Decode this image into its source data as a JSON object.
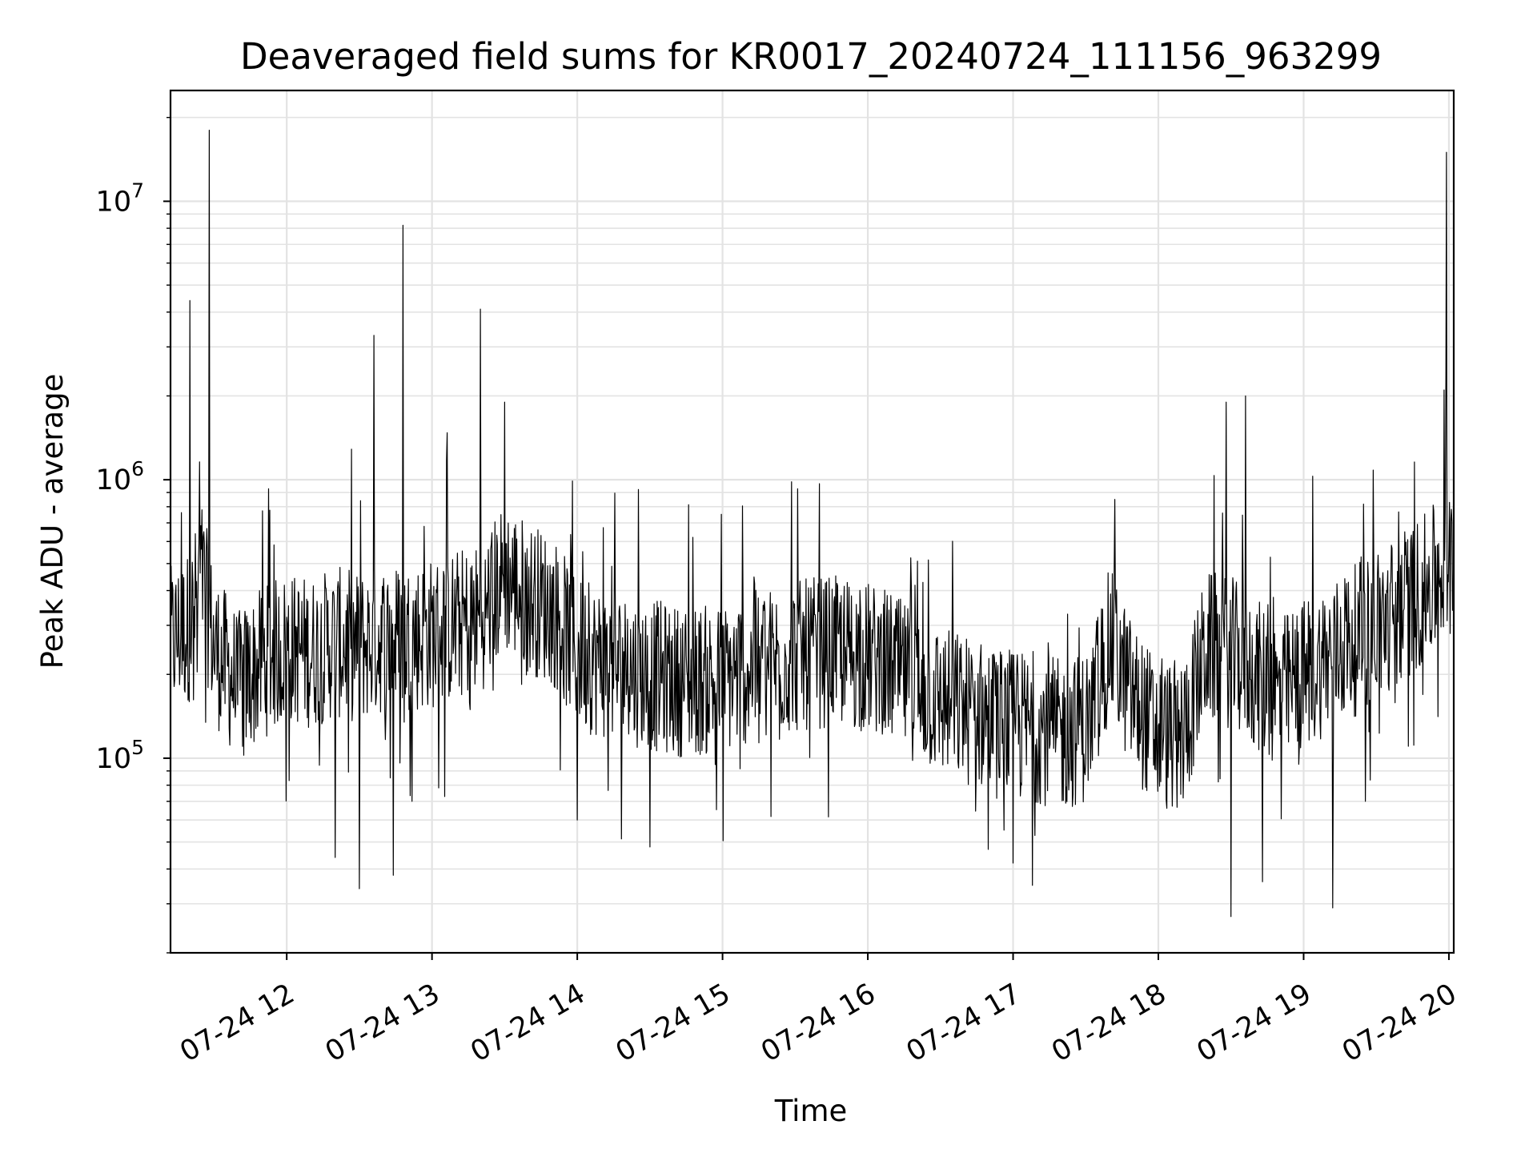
{
  "chart_data": {
    "type": "line",
    "title": "Deaveraged field sums for KR0017_20240724_111156_963299",
    "xlabel": "Time",
    "ylabel": "Peak ADU - average",
    "yscale": "log",
    "ylim": [
      20000,
      25000000
    ],
    "xlim": [
      "07-24 11:12",
      "07-24 20:02"
    ],
    "x_ticks": [
      "07-24 12",
      "07-24 13",
      "07-24 14",
      "07-24 15",
      "07-24 16",
      "07-24 17",
      "07-24 18",
      "07-24 19",
      "07-24 20"
    ],
    "y_ticks": [
      {
        "base": "10",
        "exp": "5",
        "value": 100000
      },
      {
        "base": "10",
        "exp": "6",
        "value": 1000000
      },
      {
        "base": "10",
        "exp": "7",
        "value": 10000000
      }
    ],
    "grid": true,
    "line_color": "#000000",
    "series": [
      {
        "points": [
          [
            "07-24 11:12",
            260000
          ],
          [
            "07-24 11:20",
            300000
          ],
          [
            "07-24 11:25",
            450000
          ],
          [
            "07-24 11:30",
            250000
          ],
          [
            "07-24 11:40",
            180000
          ],
          [
            "07-24 11:50",
            220000
          ],
          [
            "07-24 12:00",
            250000
          ],
          [
            "07-24 12:10",
            240000
          ],
          [
            "07-24 12:20",
            260000
          ],
          [
            "07-24 12:30",
            250000
          ],
          [
            "07-24 12:40",
            270000
          ],
          [
            "07-24 12:50",
            270000
          ],
          [
            "07-24 13:00",
            280000
          ],
          [
            "07-24 13:10",
            300000
          ],
          [
            "07-24 13:20",
            320000
          ],
          [
            "07-24 13:30",
            450000
          ],
          [
            "07-24 13:40",
            380000
          ],
          [
            "07-24 13:50",
            340000
          ],
          [
            "07-24 14:00",
            240000
          ],
          [
            "07-24 14:10",
            220000
          ],
          [
            "07-24 14:20",
            210000
          ],
          [
            "07-24 14:30",
            200000
          ],
          [
            "07-24 14:40",
            190000
          ],
          [
            "07-24 14:50",
            190000
          ],
          [
            "07-24 15:00",
            190000
          ],
          [
            "07-24 15:10",
            210000
          ],
          [
            "07-24 15:20",
            220000
          ],
          [
            "07-24 15:30",
            230000
          ],
          [
            "07-24 15:40",
            240000
          ],
          [
            "07-24 15:50",
            240000
          ],
          [
            "07-24 16:00",
            230000
          ],
          [
            "07-24 16:10",
            210000
          ],
          [
            "07-24 16:20",
            180000
          ],
          [
            "07-24 16:30",
            160000
          ],
          [
            "07-24 16:40",
            150000
          ],
          [
            "07-24 16:50",
            140000
          ],
          [
            "07-24 17:00",
            130000
          ],
          [
            "07-24 17:10",
            130000
          ],
          [
            "07-24 17:20",
            120000
          ],
          [
            "07-24 17:30",
            130000
          ],
          [
            "07-24 17:40",
            260000
          ],
          [
            "07-24 17:50",
            160000
          ],
          [
            "07-24 18:00",
            120000
          ],
          [
            "07-24 18:10",
            120000
          ],
          [
            "07-24 18:20",
            250000
          ],
          [
            "07-24 18:30",
            240000
          ],
          [
            "07-24 18:40",
            200000
          ],
          [
            "07-24 18:50",
            170000
          ],
          [
            "07-24 19:00",
            200000
          ],
          [
            "07-24 19:10",
            230000
          ],
          [
            "07-24 19:20",
            260000
          ],
          [
            "07-24 19:30",
            300000
          ],
          [
            "07-24 19:40",
            350000
          ],
          [
            "07-24 19:50",
            400000
          ],
          [
            "07-24 20:00",
            500000
          ],
          [
            "07-24 20:02",
            550000
          ]
        ]
      }
    ],
    "spikes": [
      [
        "07-24 11:20",
        4400000
      ],
      [
        "07-24 11:28",
        18000000
      ],
      [
        "07-24 12:36",
        3300000
      ],
      [
        "07-24 12:48",
        8200000
      ],
      [
        "07-24 13:20",
        4100000
      ],
      [
        "07-24 13:30",
        1900000
      ],
      [
        "07-24 17:42",
        850000
      ],
      [
        "07-24 18:28",
        1900000
      ],
      [
        "07-24 18:36",
        2000000
      ],
      [
        "07-24 19:59",
        15000000
      ],
      [
        "07-24 19:58",
        2100000
      ]
    ],
    "dips": [
      [
        "07-24 12:20",
        44000
      ],
      [
        "07-24 12:30",
        34000
      ],
      [
        "07-24 12:44",
        38000
      ],
      [
        "07-24 14:00",
        60000
      ],
      [
        "07-24 14:30",
        48000
      ],
      [
        "07-24 17:00",
        42000
      ],
      [
        "07-24 18:30",
        27000
      ],
      [
        "07-24 18:43",
        36000
      ],
      [
        "07-24 19:12",
        29000
      ]
    ]
  }
}
